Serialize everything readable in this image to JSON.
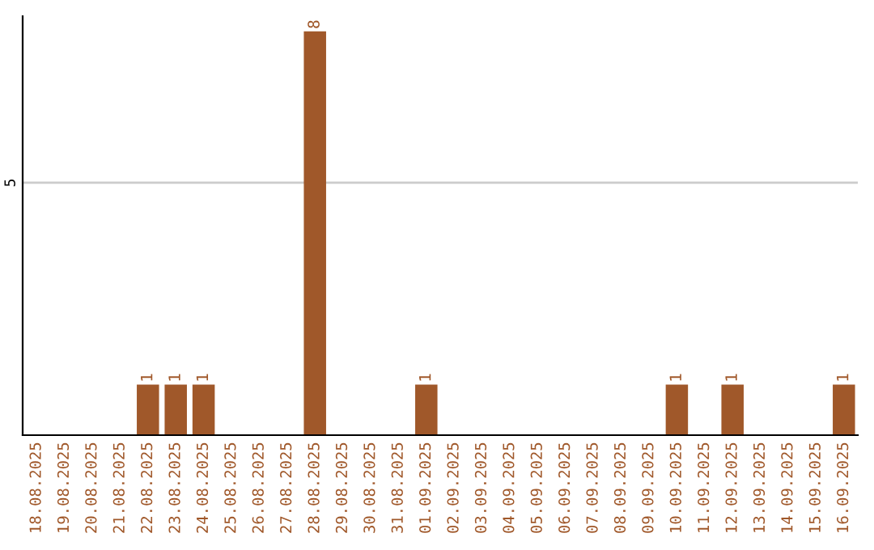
{
  "chart_data": {
    "type": "bar",
    "categories": [
      "18.08.2025",
      "19.08.2025",
      "20.08.2025",
      "21.08.2025",
      "22.08.2025",
      "23.08.2025",
      "24.08.2025",
      "25.08.2025",
      "26.08.2025",
      "27.08.2025",
      "28.08.2025",
      "29.08.2025",
      "30.08.2025",
      "31.08.2025",
      "01.09.2025",
      "02.09.2025",
      "03.09.2025",
      "04.09.2025",
      "05.09.2025",
      "06.09.2025",
      "07.09.2025",
      "08.09.2025",
      "09.09.2025",
      "10.09.2025",
      "11.09.2025",
      "12.09.2025",
      "13.09.2025",
      "14.09.2025",
      "15.09.2025",
      "16.09.2025"
    ],
    "values": [
      0,
      0,
      0,
      0,
      1,
      1,
      1,
      0,
      0,
      0,
      8,
      0,
      0,
      0,
      1,
      0,
      0,
      0,
      0,
      0,
      0,
      0,
      0,
      1,
      0,
      1,
      0,
      0,
      0,
      1
    ],
    "color": "#a0582a",
    "value_labels": [
      null,
      null,
      null,
      null,
      "1",
      "1",
      "1",
      null,
      null,
      null,
      "8",
      null,
      null,
      null,
      "1",
      null,
      null,
      null,
      null,
      null,
      null,
      null,
      null,
      "1",
      null,
      "1",
      null,
      null,
      null,
      "1"
    ],
    "ylim": [
      0,
      8.3
    ],
    "yticks": [
      5
    ],
    "grid": "y",
    "legend": false
  }
}
